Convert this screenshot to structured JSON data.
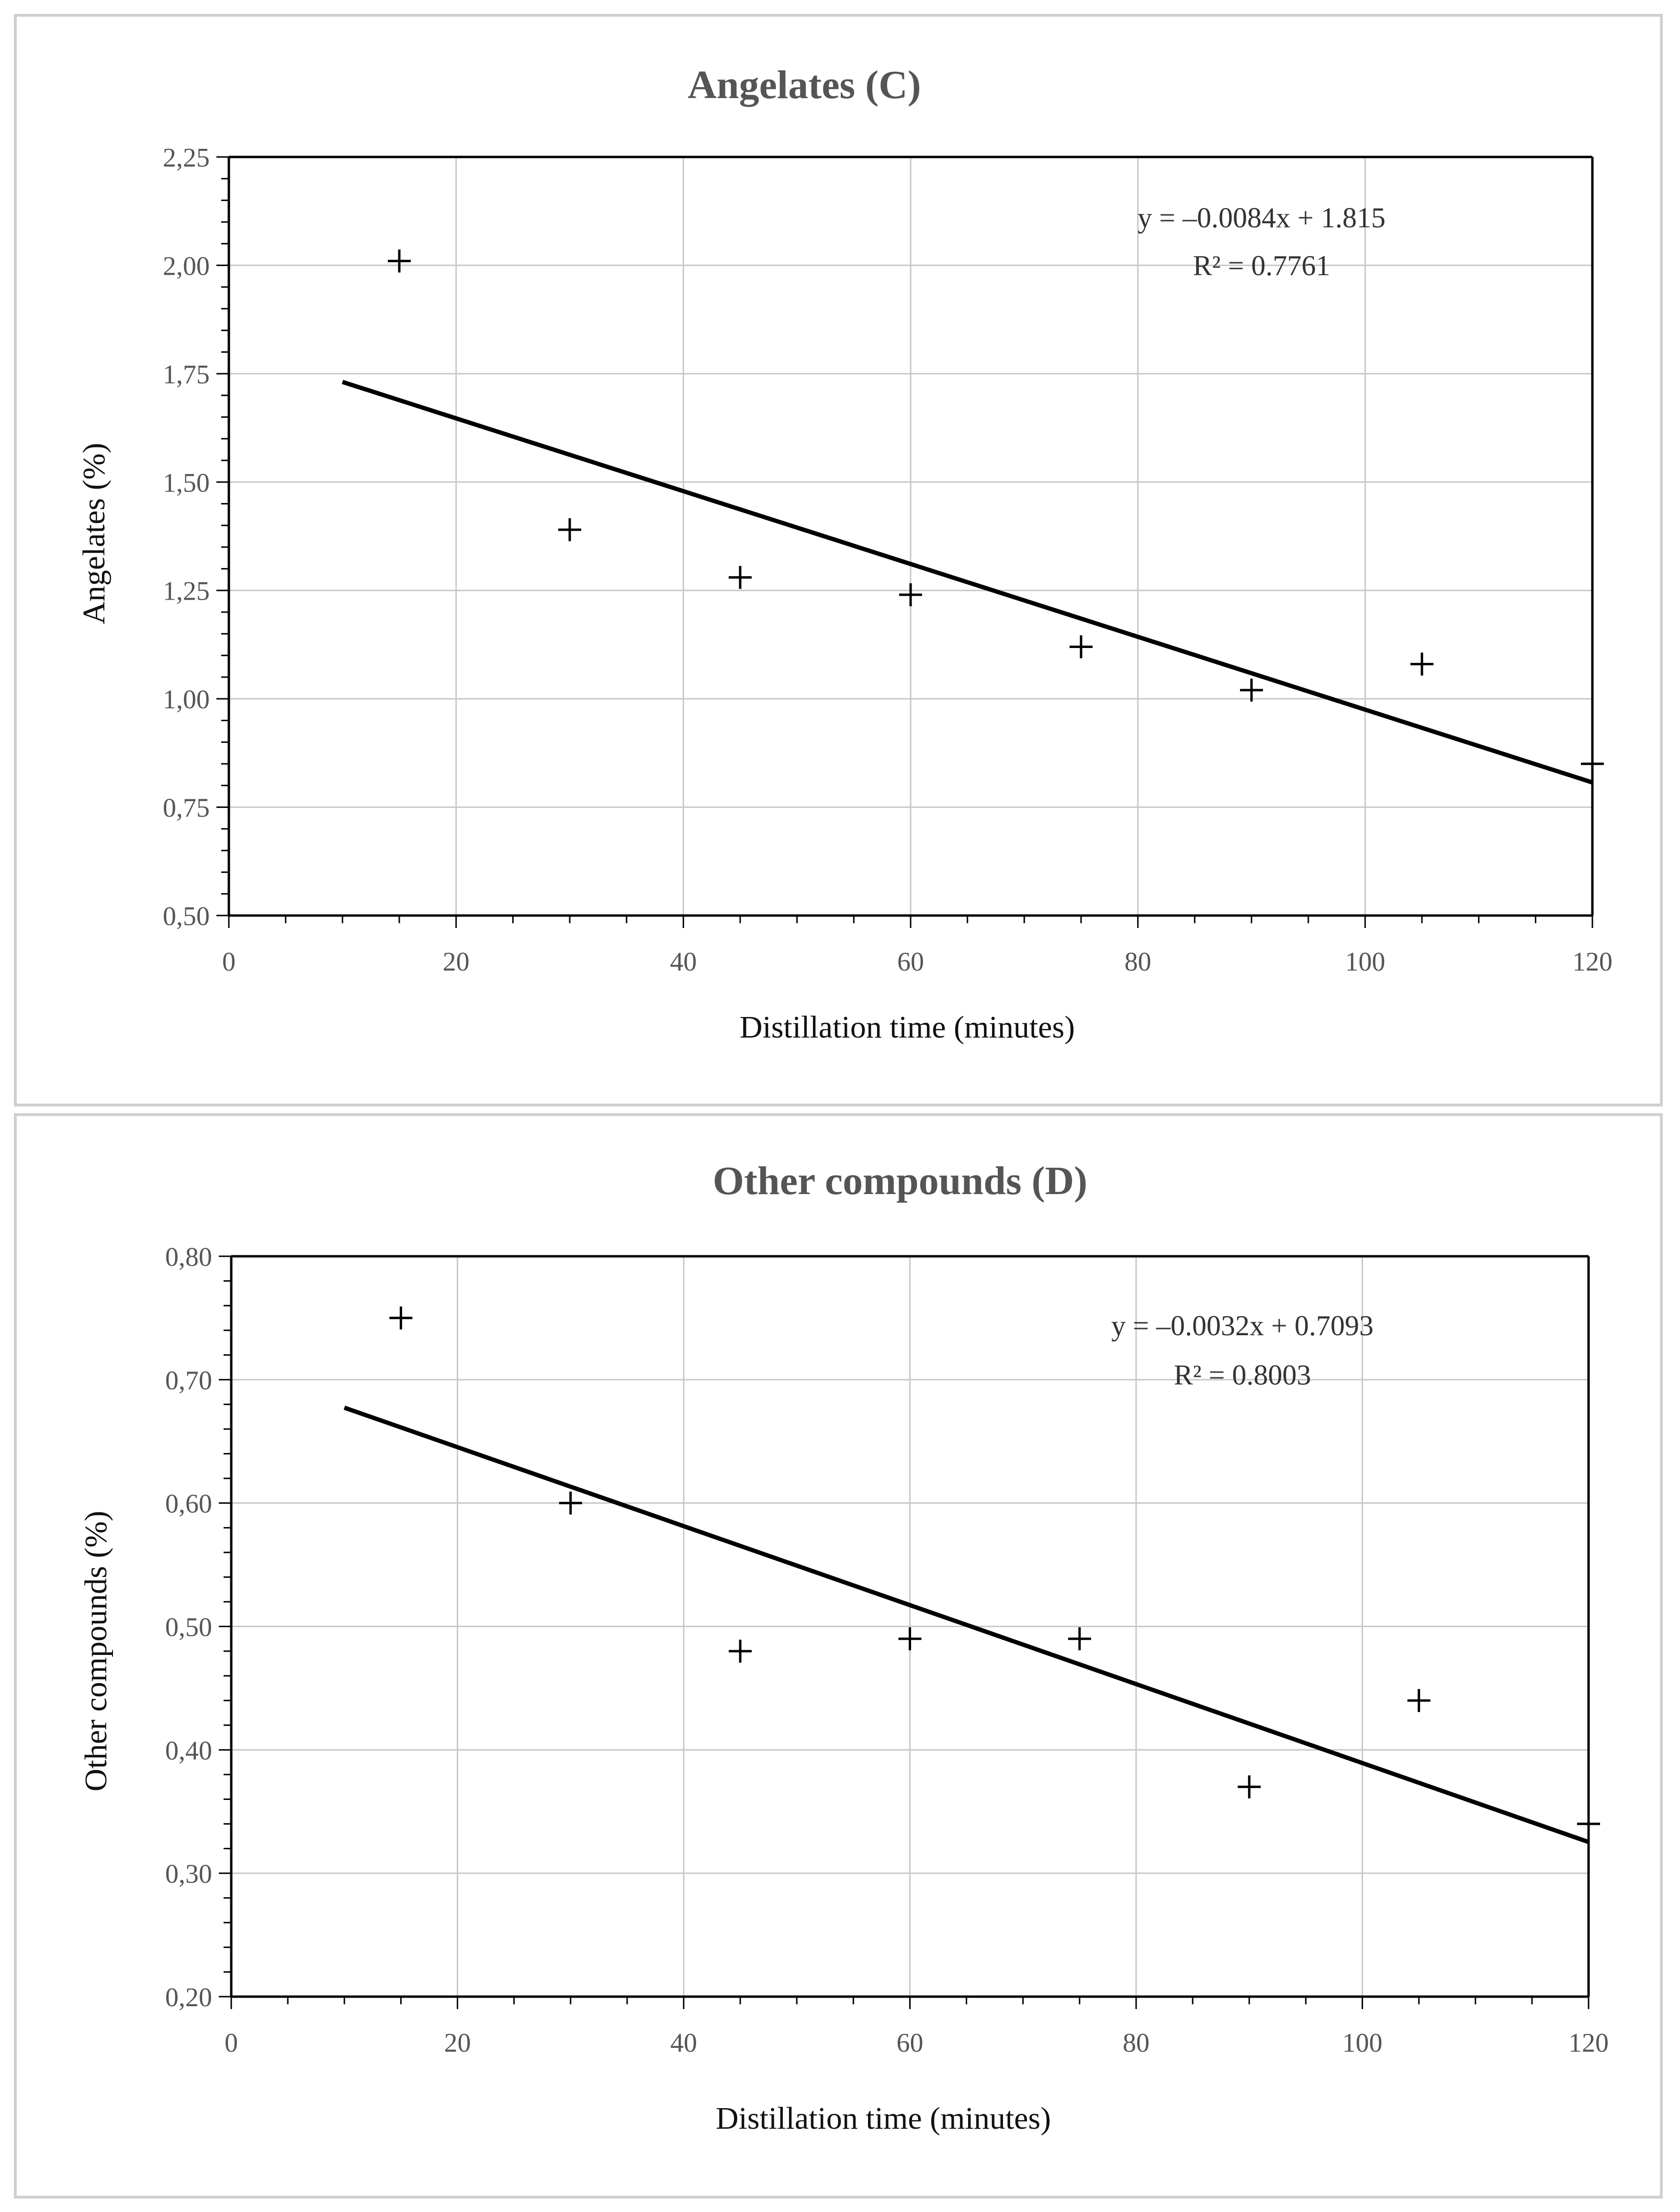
{
  "chart_data": [
    {
      "id": "c",
      "type": "scatter",
      "title": "Angelates (C)",
      "xlabel": "Distillation time (minutes)",
      "ylabel": "Angelates (%)",
      "xlim": [
        0,
        120
      ],
      "ylim": [
        0.5,
        2.25
      ],
      "xticks": [
        0,
        20,
        40,
        60,
        80,
        100,
        120
      ],
      "xtick_labels": [
        "0",
        "20",
        "40",
        "60",
        "80",
        "100",
        "120"
      ],
      "yticks": [
        0.5,
        0.75,
        1.0,
        1.25,
        1.5,
        1.75,
        2.0,
        2.25
      ],
      "ytick_labels": [
        "0,50",
        "0,75",
        "1,00",
        "1,25",
        "1,50",
        "1,75",
        "2,00",
        "2,25"
      ],
      "grid": true,
      "series": [
        {
          "name": "Angelates",
          "marker": "+",
          "x": [
            15,
            30,
            45,
            60,
            75,
            90,
            105,
            120
          ],
          "y": [
            2.01,
            1.39,
            1.28,
            1.24,
            1.12,
            1.02,
            1.08,
            0.85
          ]
        }
      ],
      "trendline": {
        "slope": -0.0084,
        "intercept": 1.815,
        "x_range": [
          10,
          120
        ],
        "equation": "y = –0.0084x + 1.815",
        "r2": "R² = 0.7761"
      }
    },
    {
      "id": "d",
      "type": "scatter",
      "title": "Other compounds (D)",
      "xlabel": "Distillation time (minutes)",
      "ylabel": "Other compounds (%)",
      "xlim": [
        0,
        120
      ],
      "ylim": [
        0.2,
        0.8
      ],
      "xticks": [
        0,
        20,
        40,
        60,
        80,
        100,
        120
      ],
      "xtick_labels": [
        "0",
        "20",
        "40",
        "60",
        "80",
        "100",
        "120"
      ],
      "yticks": [
        0.2,
        0.3,
        0.4,
        0.5,
        0.6,
        0.7,
        0.8
      ],
      "ytick_labels": [
        "0,20",
        "0,30",
        "0,40",
        "0,50",
        "0,60",
        "0,70",
        "0,80"
      ],
      "grid": true,
      "series": [
        {
          "name": "Other compounds",
          "marker": "+",
          "x": [
            15,
            30,
            45,
            60,
            75,
            90,
            105,
            120
          ],
          "y": [
            0.75,
            0.6,
            0.48,
            0.49,
            0.49,
            0.37,
            0.44,
            0.34
          ]
        }
      ],
      "trendline": {
        "slope": -0.0032,
        "intercept": 0.7093,
        "x_range": [
          10,
          120
        ],
        "equation": "y = –0.0032x + 0.7093",
        "r2": "R² = 0.8003"
      }
    }
  ]
}
